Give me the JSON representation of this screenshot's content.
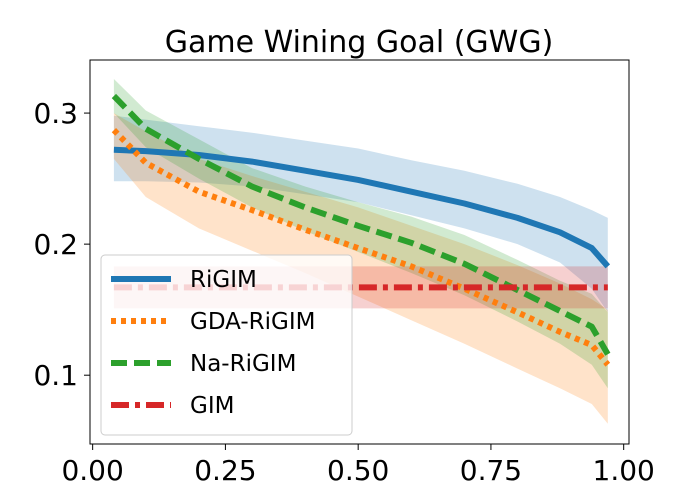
{
  "chart_data": {
    "type": "line",
    "title": "Game Wining Goal (GWG)",
    "xlabel": "",
    "ylabel": "",
    "xlim": [
      -0.005,
      1.01
    ],
    "ylim": [
      0.0475,
      0.3405
    ],
    "xticks": [
      0.0,
      0.25,
      0.5,
      0.75,
      1.0
    ],
    "xtick_labels": [
      "0.00",
      "0.25",
      "0.50",
      "0.75",
      "1.00"
    ],
    "yticks": [
      0.1,
      0.2,
      0.3
    ],
    "ytick_labels": [
      "0.1",
      "0.2",
      "0.3"
    ],
    "grid": false,
    "legend_position": "lower-left",
    "series": [
      {
        "name": "RiGIM",
        "color": "#1f77b4",
        "style": "solid",
        "band_opacity": 0.22,
        "x": [
          0.04,
          0.1,
          0.2,
          0.3,
          0.4,
          0.5,
          0.6,
          0.7,
          0.8,
          0.88,
          0.94,
          0.97
        ],
        "y": [
          0.272,
          0.271,
          0.268,
          0.263,
          0.256,
          0.249,
          0.24,
          0.231,
          0.22,
          0.209,
          0.197,
          0.183
        ],
        "lower": [
          0.248,
          0.248,
          0.247,
          0.244,
          0.238,
          0.232,
          0.222,
          0.212,
          0.2,
          0.186,
          0.166,
          0.148
        ],
        "upper": [
          0.298,
          0.295,
          0.29,
          0.285,
          0.279,
          0.273,
          0.264,
          0.256,
          0.246,
          0.236,
          0.226,
          0.22
        ]
      },
      {
        "name": "GDA-RiGIM",
        "color": "#ff7f0e",
        "style": "dotted",
        "band_opacity": 0.22,
        "x": [
          0.04,
          0.1,
          0.2,
          0.3,
          0.4,
          0.5,
          0.6,
          0.7,
          0.8,
          0.88,
          0.94,
          0.97
        ],
        "y": [
          0.287,
          0.262,
          0.24,
          0.226,
          0.211,
          0.197,
          0.183,
          0.166,
          0.148,
          0.133,
          0.123,
          0.108
        ],
        "lower": [
          0.265,
          0.236,
          0.212,
          0.195,
          0.178,
          0.16,
          0.142,
          0.124,
          0.105,
          0.09,
          0.078,
          0.063
        ],
        "upper": [
          0.3,
          0.286,
          0.265,
          0.252,
          0.24,
          0.228,
          0.214,
          0.2,
          0.184,
          0.17,
          0.158,
          0.15
        ]
      },
      {
        "name": "Na-RiGIM",
        "color": "#2ca02c",
        "style": "dashed",
        "band_opacity": 0.22,
        "x": [
          0.04,
          0.1,
          0.2,
          0.3,
          0.4,
          0.5,
          0.6,
          0.7,
          0.8,
          0.88,
          0.94,
          0.97
        ],
        "y": [
          0.313,
          0.288,
          0.265,
          0.244,
          0.228,
          0.214,
          0.201,
          0.185,
          0.165,
          0.149,
          0.137,
          0.116
        ],
        "lower": [
          0.3,
          0.274,
          0.25,
          0.228,
          0.21,
          0.194,
          0.178,
          0.161,
          0.141,
          0.124,
          0.108,
          0.09
        ],
        "upper": [
          0.326,
          0.302,
          0.28,
          0.258,
          0.244,
          0.232,
          0.221,
          0.207,
          0.188,
          0.172,
          0.162,
          0.148
        ]
      },
      {
        "name": "GIM",
        "color": "#d62728",
        "style": "dashdot",
        "band_opacity": 0.22,
        "x": [
          0.04,
          0.97
        ],
        "y": [
          0.167,
          0.167
        ],
        "lower": [
          0.151,
          0.151
        ],
        "upper": [
          0.183,
          0.183
        ]
      }
    ]
  }
}
